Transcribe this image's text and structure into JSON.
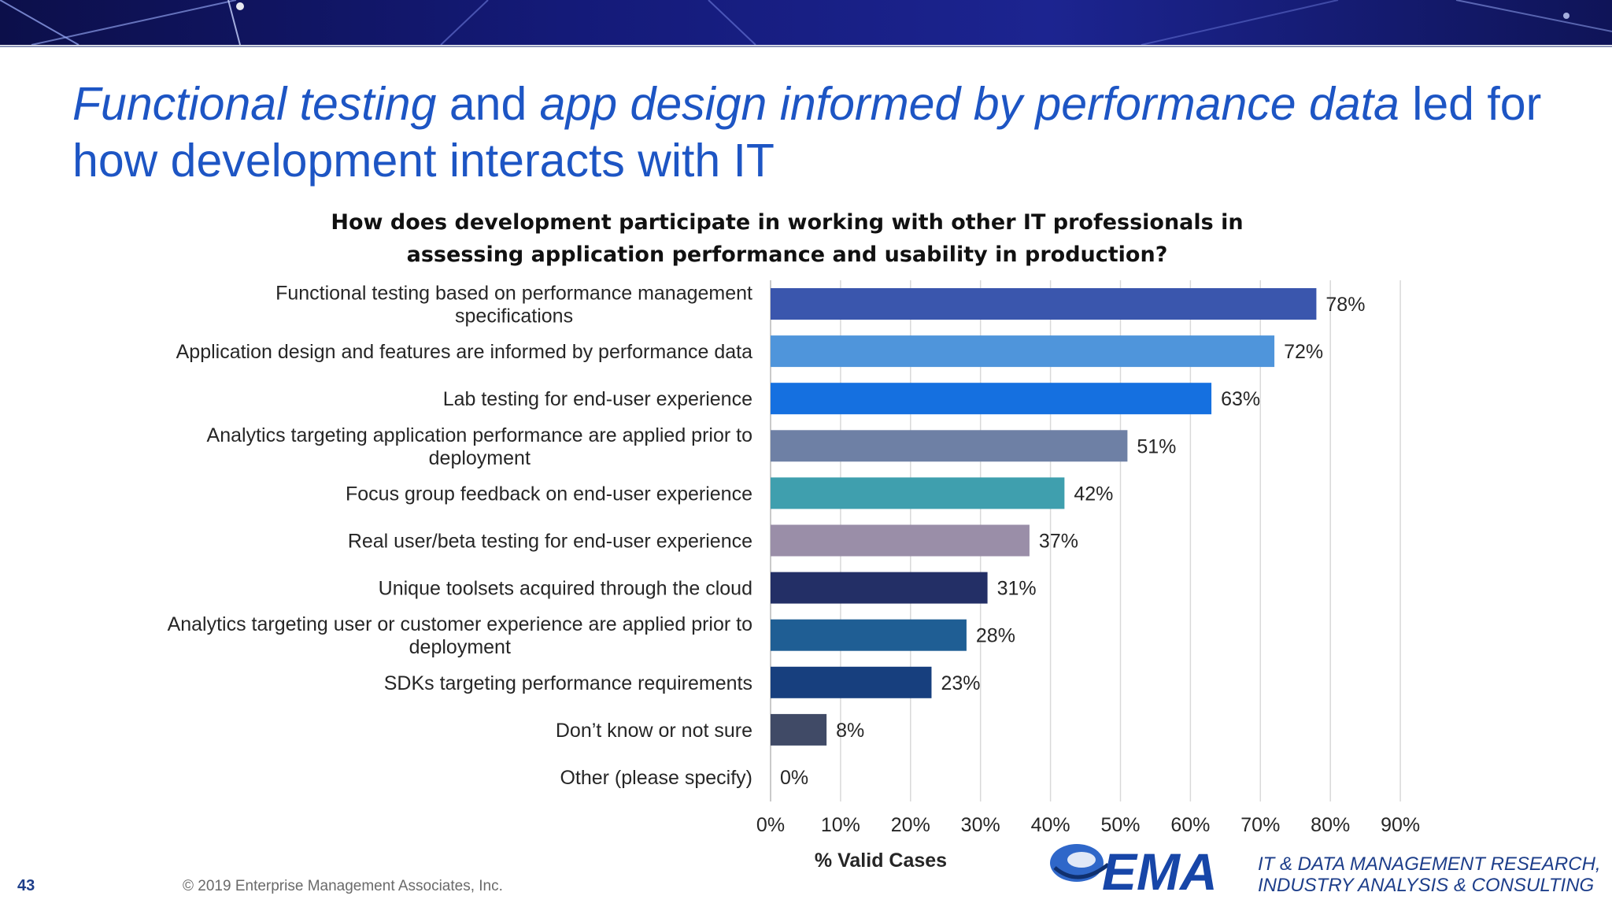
{
  "slide": {
    "title_parts": [
      {
        "text": "Functional testing",
        "italic": true
      },
      {
        "text": " and ",
        "italic": false
      },
      {
        "text": "app design informed by performance data",
        "italic": true
      },
      {
        "text": " led for how development interacts with IT",
        "italic": false
      }
    ],
    "page_number": "43",
    "copyright": "© 2019 Enterprise Management Associates, Inc.",
    "logo_text": "EMA",
    "tagline_lines": [
      "IT & DATA MANAGEMENT RESEARCH,",
      "INDUSTRY ANALYSIS & CONSULTING"
    ]
  },
  "chart_data": {
    "type": "bar",
    "orientation": "horizontal",
    "title": "How does development participate in working with other IT professionals in assessing application performance and usability in production?",
    "xlabel": "% Valid Cases",
    "ylabel": "",
    "xlim": [
      0,
      90
    ],
    "xticks": [
      "0%",
      "10%",
      "20%",
      "30%",
      "40%",
      "50%",
      "60%",
      "70%",
      "80%",
      "90%"
    ],
    "grid": true,
    "categories": [
      "Functional testing based on performance management specifications",
      "Application design and features are informed by performance data",
      "Lab testing for end-user experience",
      "Analytics targeting application performance are applied prior to deployment",
      "Focus group feedback on end-user experience",
      "Real user/beta testing for end-user experience",
      "Unique toolsets acquired through the cloud",
      "Analytics targeting user or customer experience are applied prior to deployment",
      "SDKs targeting performance requirements",
      "Don’t know or not sure",
      "Other (please specify)"
    ],
    "category_lines": [
      [
        "Functional testing based on performance management",
        "specifications"
      ],
      [
        "Application design and features are informed by performance data"
      ],
      [
        "Lab testing for end-user experience"
      ],
      [
        "Analytics targeting application performance are applied prior to",
        "deployment"
      ],
      [
        "Focus group feedback on end-user experience"
      ],
      [
        "Real user/beta testing for end-user experience"
      ],
      [
        "Unique toolsets acquired through the cloud"
      ],
      [
        "Analytics targeting user or customer experience are applied prior to",
        "deployment"
      ],
      [
        "SDKs targeting performance requirements"
      ],
      [
        "Don’t know or not sure"
      ],
      [
        "Other (please specify)"
      ]
    ],
    "values": [
      78,
      72,
      63,
      51,
      42,
      37,
      31,
      28,
      23,
      8,
      0
    ],
    "value_labels": [
      "78%",
      "72%",
      "63%",
      "51%",
      "42%",
      "37%",
      "31%",
      "28%",
      "23%",
      "8%",
      "0%"
    ],
    "colors": [
      "#3a56ad",
      "#4f95db",
      "#1570e0",
      "#6e80a5",
      "#3f9fae",
      "#9a8ea8",
      "#232f66",
      "#1f5e94",
      "#173f7e",
      "#404a66",
      "#404a66"
    ]
  }
}
